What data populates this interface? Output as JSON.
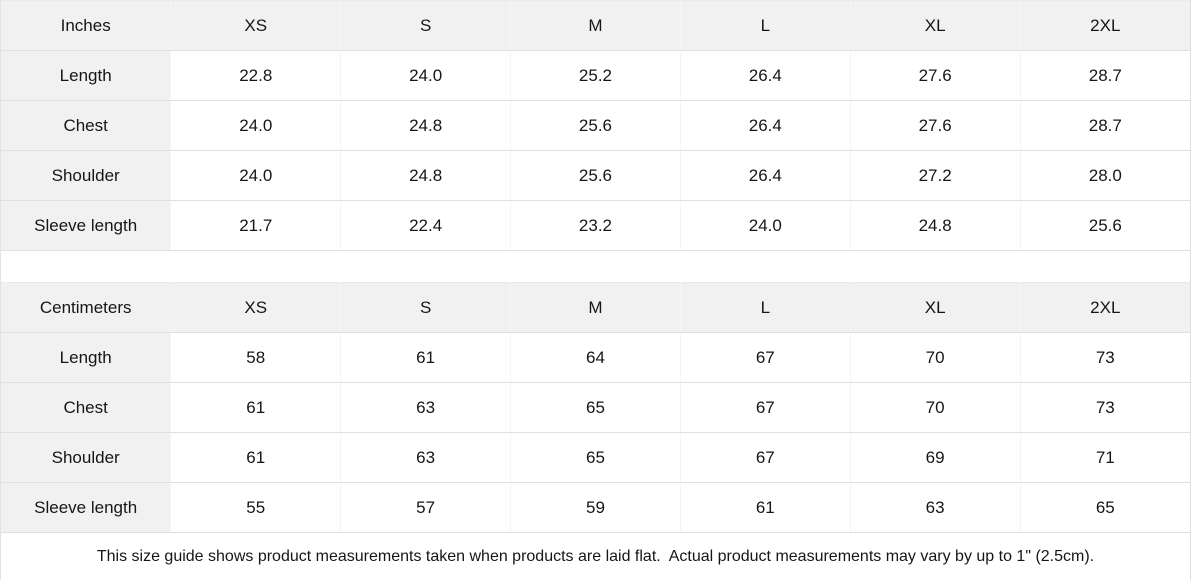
{
  "chart_data": [
    {
      "type": "table",
      "unit": "Inches",
      "columns": [
        "Inches",
        "XS",
        "S",
        "M",
        "L",
        "XL",
        "2XL"
      ],
      "rows": [
        {
          "label": "Length",
          "values": [
            "22.8",
            "24.0",
            "25.2",
            "26.4",
            "27.6",
            "28.7"
          ]
        },
        {
          "label": "Chest",
          "values": [
            "24.0",
            "24.8",
            "25.6",
            "26.4",
            "27.6",
            "28.7"
          ]
        },
        {
          "label": "Shoulder",
          "values": [
            "24.0",
            "24.8",
            "25.6",
            "26.4",
            "27.2",
            "28.0"
          ]
        },
        {
          "label": "Sleeve length",
          "values": [
            "21.7",
            "22.4",
            "23.2",
            "24.0",
            "24.8",
            "25.6"
          ]
        }
      ]
    },
    {
      "type": "table",
      "unit": "Centimeters",
      "columns": [
        "Centimeters",
        "XS",
        "S",
        "M",
        "L",
        "XL",
        "2XL"
      ],
      "rows": [
        {
          "label": "Length",
          "values": [
            "58",
            "61",
            "64",
            "67",
            "70",
            "73"
          ]
        },
        {
          "label": "Chest",
          "values": [
            "61",
            "63",
            "65",
            "67",
            "70",
            "73"
          ]
        },
        {
          "label": "Shoulder",
          "values": [
            "61",
            "63",
            "65",
            "67",
            "69",
            "71"
          ]
        },
        {
          "label": "Sleeve length",
          "values": [
            "55",
            "57",
            "59",
            "61",
            "63",
            "65"
          ]
        }
      ]
    }
  ],
  "footer": {
    "note": "This size guide shows product measurements taken when products are laid flat.  Actual product measurements may vary by up to 1\" (2.5cm)."
  },
  "colors": {
    "header_cell_bg": "#f1f1f1",
    "row_divider": "#e0e0e0",
    "column_divider": "#f5f5f5",
    "text": "#161616",
    "background": "#ffffff"
  }
}
